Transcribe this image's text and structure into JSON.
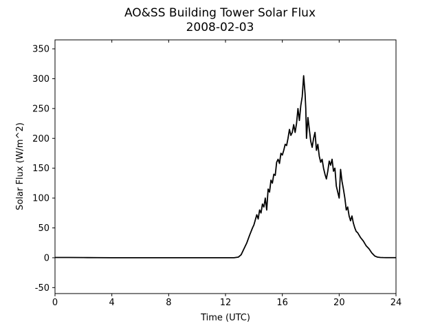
{
  "chart_data": {
    "type": "line",
    "title": "AO&SS Building Tower Solar Flux",
    "subtitle": "2008-02-03",
    "xlabel": "Time (UTC)",
    "ylabel": "Solar Flux (W/m^2)",
    "xlim": [
      0,
      24
    ],
    "ylim": [
      -60,
      365
    ],
    "xticks": [
      0,
      4,
      8,
      12,
      16,
      20,
      24
    ],
    "yticks": [
      -50,
      0,
      50,
      100,
      150,
      200,
      250,
      300,
      350
    ],
    "grid": false,
    "line_color": "#000000",
    "series": [
      {
        "x": [
          0,
          1,
          2,
          3,
          4,
          6,
          8,
          10,
          12,
          12.6,
          12.9,
          13.1,
          13.3,
          13.5,
          13.7,
          13.9,
          14.0,
          14.2,
          14.3,
          14.4,
          14.5,
          14.6,
          14.7,
          14.8,
          14.9,
          15.0,
          15.1,
          15.2,
          15.3,
          15.4,
          15.5,
          15.6,
          15.7,
          15.8,
          15.9,
          16.0,
          16.1,
          16.2,
          16.3,
          16.4,
          16.5,
          16.6,
          16.7,
          16.8,
          16.9,
          17.0,
          17.1,
          17.2,
          17.3,
          17.4,
          17.5,
          17.6,
          17.65,
          17.7,
          17.8,
          17.9,
          18.0,
          18.1,
          18.2,
          18.3,
          18.4,
          18.5,
          18.6,
          18.7,
          18.8,
          18.9,
          19.0,
          19.1,
          19.2,
          19.3,
          19.4,
          19.5,
          19.6,
          19.7,
          19.8,
          19.9,
          20.0,
          20.1,
          20.2,
          20.3,
          20.4,
          20.5,
          20.6,
          20.7,
          20.8,
          20.9,
          21.0,
          21.1,
          21.2,
          21.3,
          21.4,
          21.5,
          21.7,
          21.9,
          22.1,
          22.3,
          22.5,
          22.7,
          22.9,
          23.1,
          23.3,
          23.6,
          24.0
        ],
        "y": [
          0.5,
          0.5,
          0.3,
          0.2,
          0,
          0,
          0,
          0,
          0,
          0,
          1,
          5,
          15,
          25,
          38,
          50,
          55,
          72,
          65,
          80,
          75,
          90,
          85,
          100,
          80,
          115,
          110,
          130,
          125,
          140,
          138,
          160,
          165,
          158,
          175,
          172,
          180,
          190,
          188,
          200,
          215,
          205,
          210,
          223,
          210,
          225,
          250,
          230,
          255,
          270,
          305,
          275,
          250,
          200,
          235,
          215,
          195,
          185,
          200,
          210,
          180,
          190,
          170,
          160,
          165,
          150,
          140,
          132,
          145,
          162,
          155,
          165,
          145,
          150,
          120,
          110,
          100,
          148,
          128,
          115,
          100,
          80,
          85,
          70,
          62,
          70,
          58,
          50,
          44,
          42,
          38,
          34,
          28,
          20,
          15,
          8,
          3,
          1,
          0.5,
          0.3,
          0.2,
          0.2,
          0.2
        ]
      }
    ]
  }
}
